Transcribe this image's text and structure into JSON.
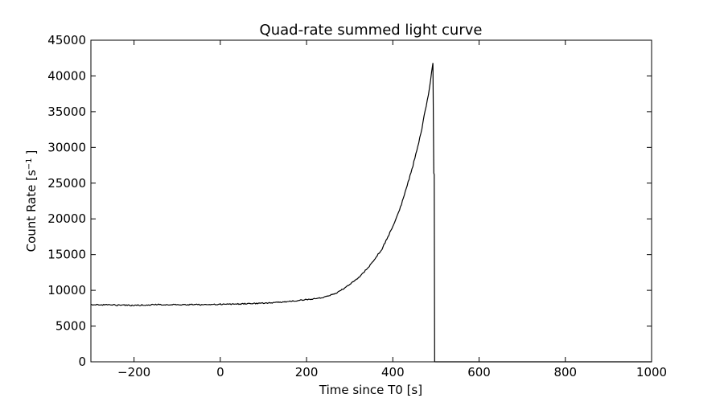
{
  "chart_data": {
    "type": "line",
    "title": "Quad-rate summed light curve",
    "xlabel": "Time since T0 [s]",
    "ylabel_main": "Count Rate [s",
    "ylabel_sup": "−1",
    "ylabel_end": "]",
    "xlim": [
      -300,
      1000
    ],
    "ylim": [
      0,
      45000
    ],
    "x_ticks": [
      -200,
      0,
      200,
      400,
      600,
      800,
      1000
    ],
    "x_tick_labels": [
      "−200",
      "0",
      "200",
      "400",
      "600",
      "800",
      "1000"
    ],
    "y_ticks": [
      0,
      5000,
      10000,
      15000,
      20000,
      25000,
      30000,
      35000,
      40000,
      45000
    ],
    "y_tick_labels": [
      "0",
      "5000",
      "10000",
      "15000",
      "20000",
      "25000",
      "30000",
      "35000",
      "40000",
      "45000"
    ],
    "grid": false,
    "line_color": "#000000",
    "series": [
      {
        "x": [
          -300,
          -250,
          -200,
          -150,
          -100,
          -50,
          0,
          50,
          100,
          150,
          200,
          225,
          250,
          275,
          300,
          325,
          350,
          375,
          400,
          420,
          440,
          460,
          470,
          480,
          490,
          493,
          495,
          496,
          497,
          500,
          1000
        ],
        "y": [
          8000,
          7950,
          7900,
          8000,
          8000,
          8000,
          8050,
          8100,
          8200,
          8400,
          8700,
          8850,
          9200,
          9800,
          10800,
          12000,
          13700,
          15800,
          18900,
          22000,
          26000,
          30500,
          33500,
          36500,
          40500,
          42000,
          26500,
          26200,
          10,
          0,
          0
        ]
      }
    ]
  }
}
